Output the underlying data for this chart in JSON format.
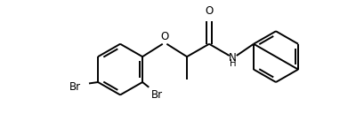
{
  "background": "#ffffff",
  "line_color": "#000000",
  "line_width": 1.4,
  "font_size": 8.5,
  "figsize": [
    4.0,
    1.37
  ],
  "dpi": 100,
  "xlim": [
    -1.0,
    8.5
  ],
  "ylim": [
    -2.5,
    2.2
  ]
}
